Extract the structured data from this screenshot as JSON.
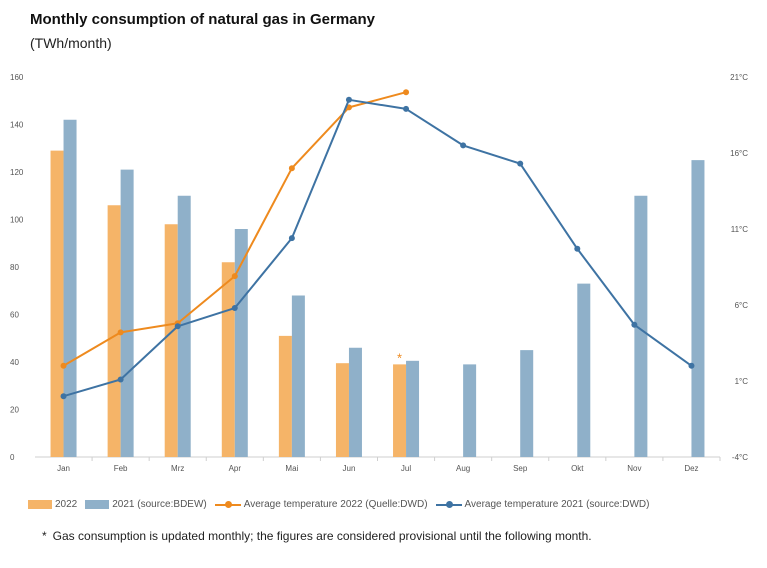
{
  "header": {
    "title": "Monthly consumption of natural gas in Germany",
    "unit": "(TWh/month)"
  },
  "colors": {
    "bar2022": "#f5b468",
    "bar2021": "#8fb0c9",
    "line2022": "#ee8a1e",
    "line2021": "#3e73a3",
    "axis_text": "#555555"
  },
  "chart_data": {
    "type": "bar+line",
    "categories": [
      "Jan",
      "Feb",
      "Mrz",
      "Apr",
      "Mai",
      "Jun",
      "Jul",
      "Aug",
      "Sep",
      "Okt",
      "Nov",
      "Dez"
    ],
    "left_axis": {
      "unit": "TWh/month",
      "ylim": [
        0,
        160
      ],
      "ticks": [
        "0",
        "20",
        "40",
        "60",
        "80",
        "100",
        "120",
        "140",
        "160"
      ]
    },
    "right_axis": {
      "unit": "°C",
      "ylim": [
        -4,
        21
      ],
      "ticks": [
        "-4°C",
        "1°C",
        "6°C",
        "11°C",
        "16°C",
        "21°C"
      ]
    },
    "series": [
      {
        "name": "2022",
        "kind": "bar",
        "axis": "left",
        "values": [
          129,
          106,
          98,
          82,
          51,
          39.5,
          39,
          null,
          null,
          null,
          null,
          null
        ]
      },
      {
        "name": "2021 (source:BDEW)",
        "kind": "bar",
        "axis": "left",
        "values": [
          142,
          121,
          110,
          96,
          68,
          46,
          40.5,
          39,
          45,
          73,
          110,
          125
        ]
      },
      {
        "name": "Average temperature 2022 (Quelle:DWD)",
        "kind": "line",
        "axis": "right",
        "values": [
          2.0,
          4.2,
          4.8,
          7.9,
          15.0,
          19.0,
          20.0,
          null,
          null,
          null,
          null,
          null
        ]
      },
      {
        "name": "Average temperature 2021 (source:DWD)",
        "kind": "line",
        "axis": "right",
        "values": [
          0.0,
          1.1,
          4.6,
          5.8,
          10.4,
          19.5,
          18.9,
          16.5,
          15.3,
          9.7,
          4.7,
          2.0
        ]
      }
    ],
    "annotations": [
      {
        "category": "Jul",
        "series": "2022",
        "text": "*"
      }
    ]
  },
  "legend": {
    "items": [
      {
        "label": "2022"
      },
      {
        "label": "2021 (source:BDEW)"
      },
      {
        "label": "Average temperature 2022 (Quelle:DWD)"
      },
      {
        "label": "Average temperature 2021 (source:DWD)"
      }
    ]
  },
  "footnote": {
    "star": "*",
    "text": "Gas consumption is updated monthly; the figures are considered provisional until the following month."
  }
}
